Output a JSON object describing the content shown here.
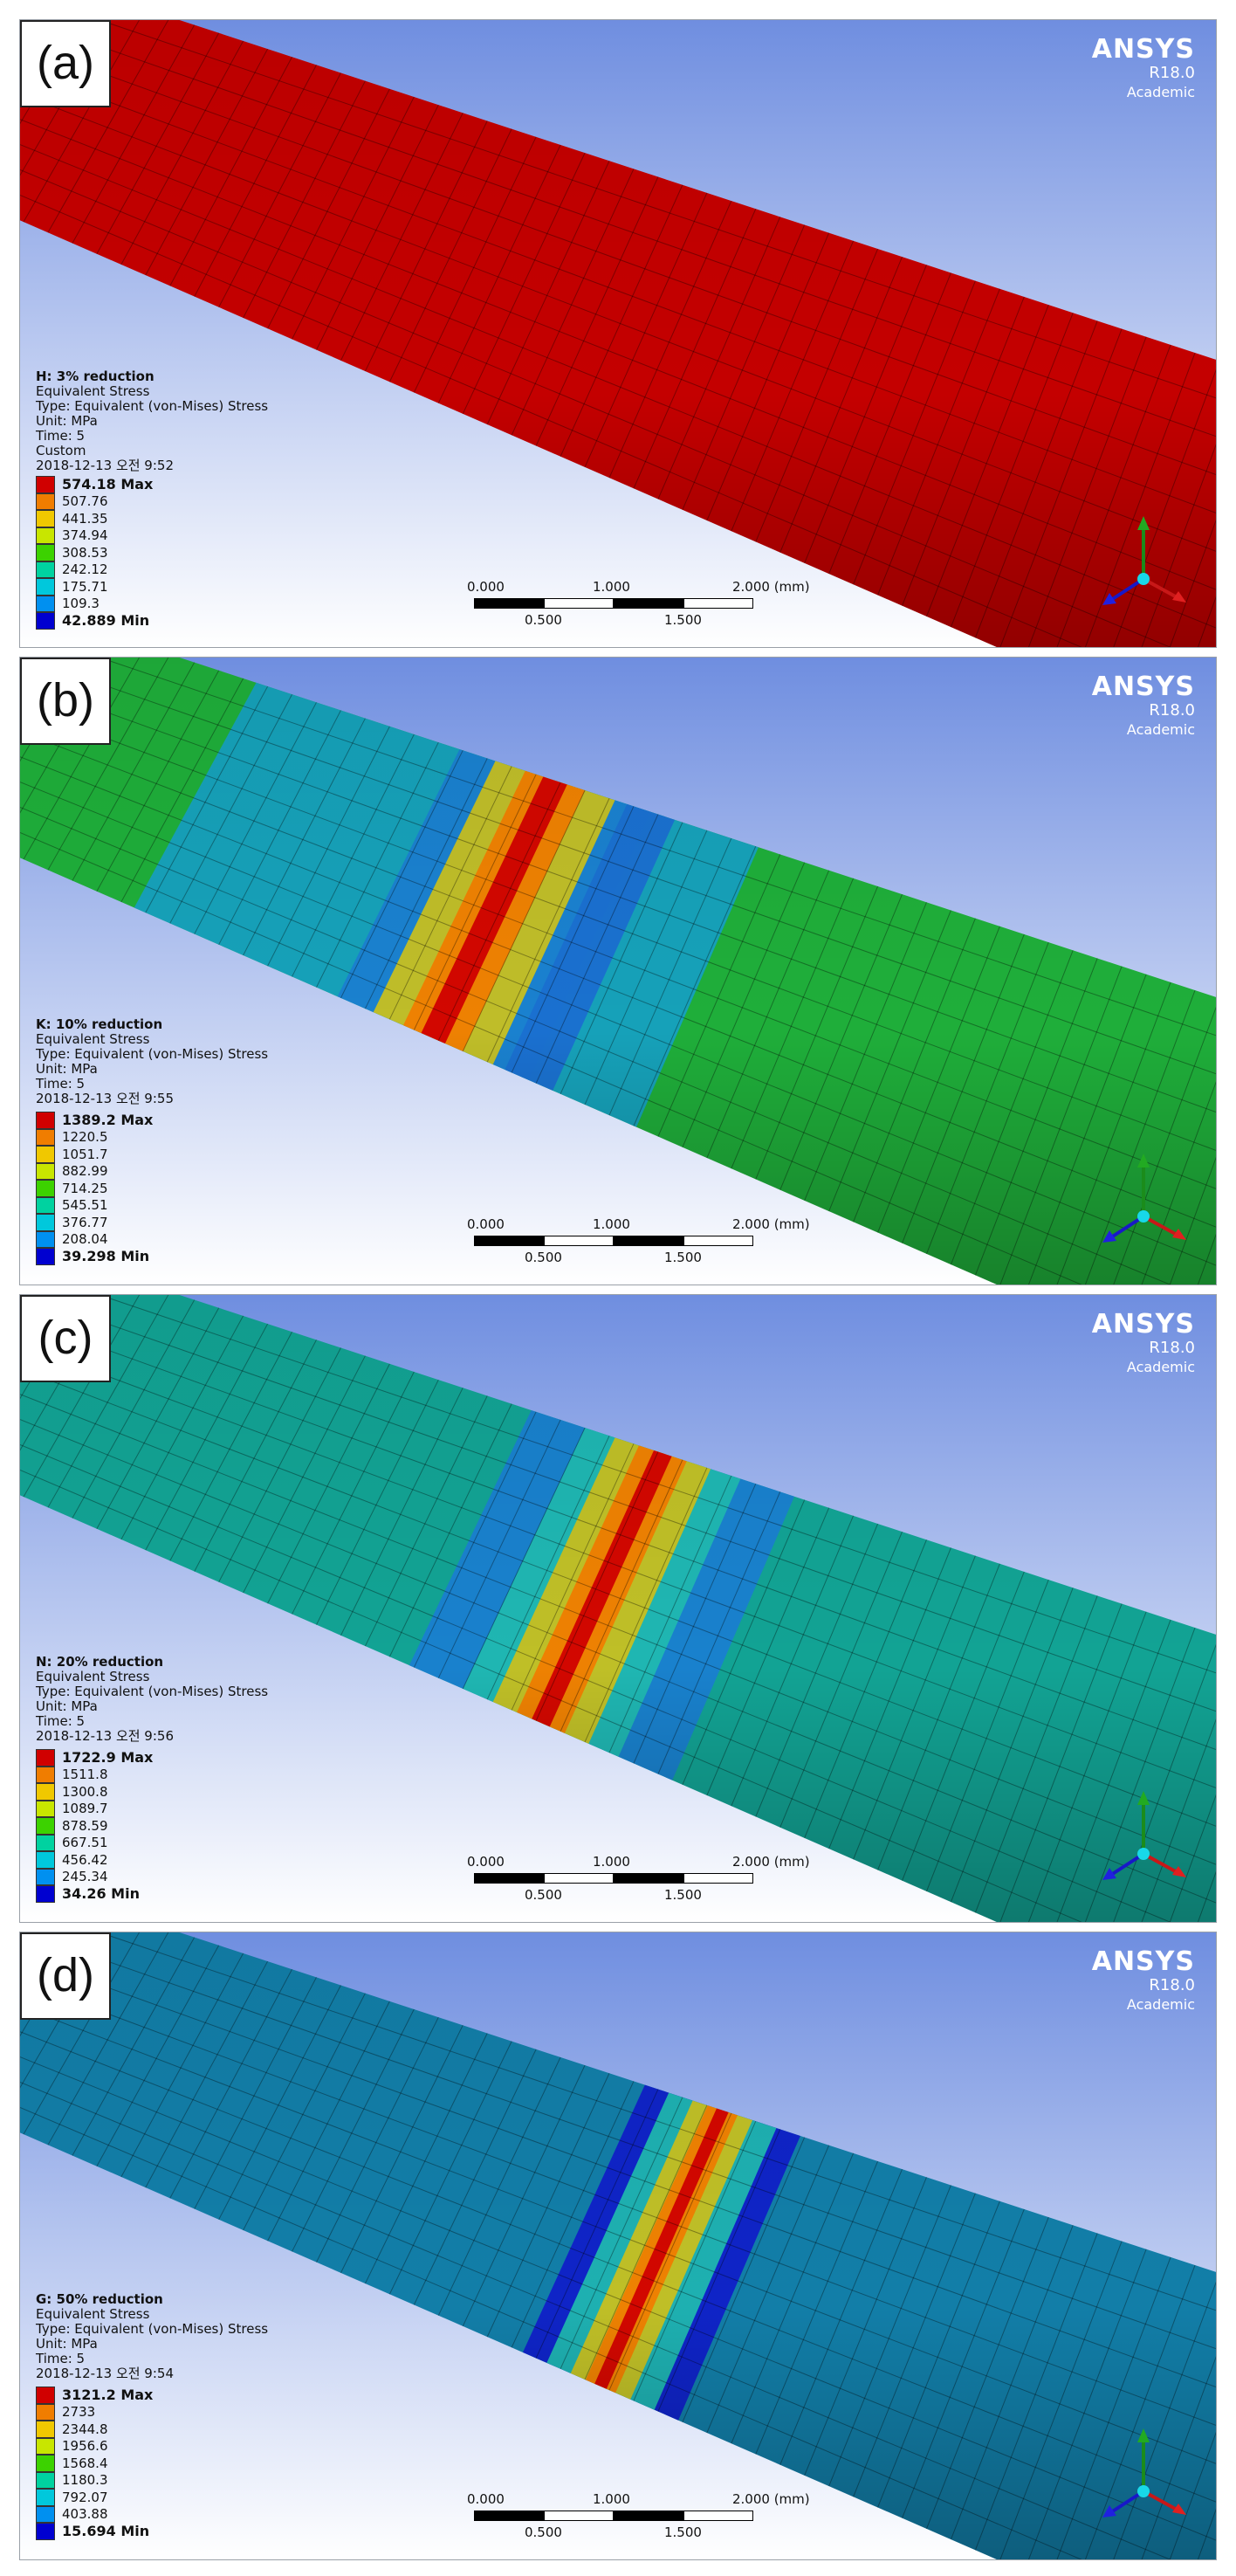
{
  "brand": {
    "name": "ANSYS",
    "version": "R18.0",
    "edition": "Academic"
  },
  "colors": {
    "legend": [
      "#d00000",
      "#f07d00",
      "#f0c800",
      "#c8e600",
      "#3cd200",
      "#00d2a0",
      "#00c8dc",
      "#0090f0",
      "#0000d0"
    ],
    "sky_top": "#6f8ee0",
    "sky_bottom": "#ffffff"
  },
  "panels": [
    {
      "label": "(a)",
      "title": "H: 3% reduction",
      "lines": [
        "Equivalent Stress",
        "Type: Equivalent (von-Mises) Stress",
        "Unit: MPa",
        "Time: 5",
        "Custom",
        "2018-12-13 오전 9:52"
      ],
      "legend": [
        "574.18 Max",
        "507.76",
        "441.35",
        "374.94",
        "308.53",
        "242.12",
        "175.71",
        "109.3",
        "42.889 Min"
      ],
      "scale": {
        "l0": "0.000",
        "l1": "1.000",
        "l2": "2.000 (mm)",
        "l3": "0.500",
        "l4": "1.500"
      },
      "pipe_color": "#c40000",
      "band": "none"
    },
    {
      "label": "(b)",
      "title": "K: 10% reduction",
      "lines": [
        "Equivalent Stress",
        "Type: Equivalent (von-Mises) Stress",
        "Unit: MPa",
        "Time: 5",
        "2018-12-13 오전 9:55"
      ],
      "legend": [
        "1389.2 Max",
        "1220.5",
        "1051.7",
        "882.99",
        "714.25",
        "545.51",
        "376.77",
        "208.04",
        "39.298 Min"
      ],
      "scale": {
        "l0": "0.000",
        "l1": "1.000",
        "l2": "2.000 (mm)",
        "l3": "0.500",
        "l4": "1.500"
      },
      "pipe_color": "#1fae3a",
      "band": "wide"
    },
    {
      "label": "(c)",
      "title": "N: 20% reduction",
      "lines": [
        "Equivalent Stress",
        "Type: Equivalent (von-Mises) Stress",
        "Unit: MPa",
        "Time: 5",
        "2018-12-13 오전 9:56"
      ],
      "legend": [
        "1722.9 Max",
        "1511.8",
        "1300.8",
        "1089.7",
        "878.59",
        "667.51",
        "456.42",
        "245.34",
        "34.26 Min"
      ],
      "scale": {
        "l0": "0.000",
        "l1": "1.000",
        "l2": "2.000 (mm)",
        "l3": "0.500",
        "l4": "1.500"
      },
      "pipe_color": "#12a394",
      "band": "mid"
    },
    {
      "label": "(d)",
      "title": "G: 50% reduction",
      "lines": [
        "Equivalent Stress",
        "Type: Equivalent (von-Mises) Stress",
        "Unit: MPa",
        "Time: 5",
        "2018-12-13 오전 9:54"
      ],
      "legend": [
        "3121.2 Max",
        "2733",
        "2344.8",
        "1956.6",
        "1568.4",
        "1180.3",
        "792.07",
        "403.88",
        "15.694 Min"
      ],
      "scale": {
        "l0": "0.000",
        "l1": "1.000",
        "l2": "2.000 (mm)",
        "l3": "0.500",
        "l4": "1.500"
      },
      "pipe_color": "#127ea8",
      "band": "narrow"
    }
  ]
}
